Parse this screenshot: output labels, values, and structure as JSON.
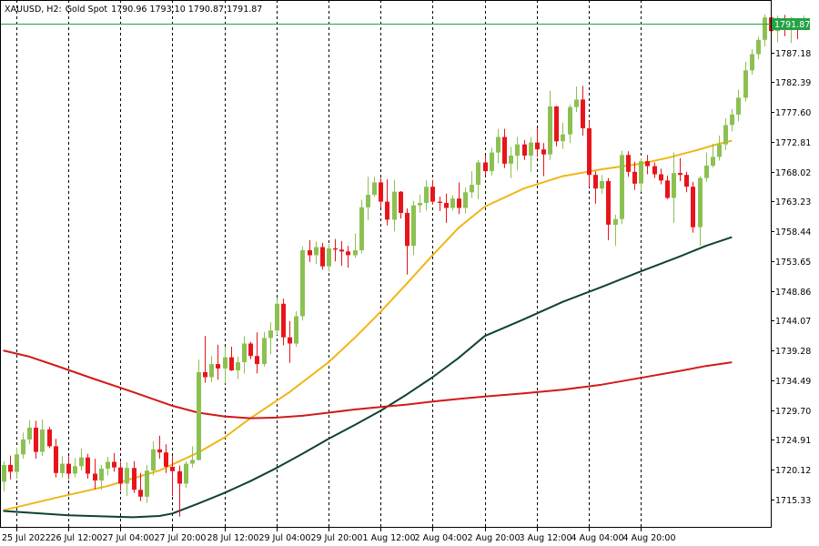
{
  "header": {
    "symbol": "XAUUSD, H2:",
    "name": "Gold Spot",
    "ohlc": "1790.96 1793.10 1790.87 1791.87"
  },
  "colors": {
    "bull": "#8cc152",
    "bear": "#e8141c",
    "ma_fast": "#f0b616",
    "ma_mid": "#0e4234",
    "ma_slow": "#d11a1a",
    "last_price_line": "#25a244",
    "grid": "#000000"
  },
  "chart_data": {
    "type": "candlestick",
    "title": "",
    "grid": "vertical dashed at time labels",
    "y_axis_position": "right",
    "ylim": [
      1710.8,
      1795.6
    ],
    "last_price": 1791.87,
    "last_price_label": "1791.87",
    "y_ticks": [
      "1787.18",
      "1782.39",
      "1777.60",
      "1772.81",
      "1768.02",
      "1763.23",
      "1758.44",
      "1753.65",
      "1748.86",
      "1744.07",
      "1739.28",
      "1734.49",
      "1729.70",
      "1724.91",
      "1720.12",
      "1715.33"
    ],
    "x_ticks": [
      "25 Jul 2022",
      "26 Jul 12:00",
      "27 Jul 04:00",
      "27 Jul 20:00",
      "28 Jul 12:00",
      "29 Jul 04:00",
      "29 Jul 20:00",
      "1 Aug 12:00",
      "2 Aug 04:00",
      "2 Aug 20:00",
      "3 Aug 12:00",
      "4 Aug 04:00",
      "4 Aug 20:00"
    ],
    "x_tick_bars": [
      2,
      10,
      18,
      26,
      34,
      42,
      50,
      58,
      66,
      74,
      82,
      90,
      98
    ],
    "candles": [
      [
        1718.2,
        1721.5,
        1716.6,
        1720.9
      ],
      [
        1720.9,
        1722.4,
        1718.6,
        1719.8
      ],
      [
        1719.8,
        1723.7,
        1718.7,
        1722.6
      ],
      [
        1722.6,
        1726.1,
        1721.9,
        1725.0
      ],
      [
        1725.0,
        1728.1,
        1724.2,
        1726.9
      ],
      [
        1726.9,
        1728.0,
        1721.9,
        1723.0
      ],
      [
        1723.0,
        1728.2,
        1722.3,
        1726.6
      ],
      [
        1726.6,
        1727.0,
        1723.6,
        1723.9
      ],
      [
        1723.9,
        1725.1,
        1718.9,
        1719.6
      ],
      [
        1719.6,
        1722.3,
        1718.9,
        1721.1
      ],
      [
        1721.1,
        1722.3,
        1718.6,
        1719.5
      ],
      [
        1719.5,
        1722.0,
        1718.9,
        1720.7
      ],
      [
        1720.7,
        1723.6,
        1720.0,
        1722.1
      ],
      [
        1722.1,
        1722.7,
        1718.7,
        1719.5
      ],
      [
        1719.5,
        1721.9,
        1717.0,
        1718.4
      ],
      [
        1718.4,
        1720.9,
        1716.9,
        1720.3
      ],
      [
        1720.3,
        1722.2,
        1719.2,
        1721.4
      ],
      [
        1721.4,
        1722.8,
        1719.8,
        1720.5
      ],
      [
        1720.5,
        1721.4,
        1716.8,
        1717.9
      ],
      [
        1717.9,
        1721.3,
        1715.9,
        1720.4
      ],
      [
        1720.4,
        1721.5,
        1716.4,
        1716.9
      ],
      [
        1716.9,
        1719.6,
        1715.1,
        1715.8
      ],
      [
        1715.8,
        1720.9,
        1714.8,
        1720.0
      ],
      [
        1720.0,
        1724.7,
        1719.2,
        1723.4
      ],
      [
        1723.4,
        1725.6,
        1721.9,
        1722.9
      ],
      [
        1722.9,
        1724.2,
        1719.6,
        1720.6
      ],
      [
        1720.6,
        1722.3,
        1715.9,
        1719.9
      ],
      [
        1719.9,
        1720.8,
        1712.6,
        1717.9
      ],
      [
        1717.9,
        1721.5,
        1717.2,
        1721.1
      ],
      [
        1721.1,
        1723.9,
        1720.5,
        1721.7
      ],
      [
        1721.7,
        1737.8,
        1721.6,
        1735.8
      ],
      [
        1735.8,
        1741.6,
        1734.1,
        1735.0
      ],
      [
        1735.0,
        1738.4,
        1734.2,
        1737.1
      ],
      [
        1737.1,
        1740.2,
        1734.6,
        1736.4
      ],
      [
        1736.4,
        1739.9,
        1734.0,
        1738.2
      ],
      [
        1738.2,
        1739.9,
        1736.0,
        1736.1
      ],
      [
        1736.1,
        1738.3,
        1734.7,
        1737.4
      ],
      [
        1737.4,
        1741.6,
        1735.6,
        1740.4
      ],
      [
        1740.4,
        1740.7,
        1737.9,
        1738.4
      ],
      [
        1738.4,
        1742.2,
        1735.6,
        1737.1
      ],
      [
        1737.1,
        1742.3,
        1736.7,
        1741.3
      ],
      [
        1741.3,
        1743.8,
        1738.7,
        1742.5
      ],
      [
        1742.5,
        1747.8,
        1741.8,
        1746.8
      ],
      [
        1746.8,
        1747.6,
        1740.1,
        1741.4
      ],
      [
        1741.4,
        1744.0,
        1737.3,
        1740.4
      ],
      [
        1740.4,
        1745.6,
        1739.9,
        1744.8
      ],
      [
        1744.8,
        1756.0,
        1744.1,
        1755.4
      ],
      [
        1755.4,
        1757.0,
        1753.5,
        1754.6
      ],
      [
        1754.6,
        1756.8,
        1753.2,
        1755.9
      ],
      [
        1755.9,
        1756.6,
        1752.3,
        1752.8
      ],
      [
        1752.8,
        1756.4,
        1752.0,
        1755.7
      ],
      [
        1755.7,
        1757.2,
        1753.6,
        1755.5
      ],
      [
        1755.5,
        1756.9,
        1752.9,
        1755.2
      ],
      [
        1755.2,
        1756.1,
        1752.6,
        1754.6
      ],
      [
        1754.6,
        1758.1,
        1754.2,
        1755.4
      ],
      [
        1755.4,
        1763.5,
        1754.9,
        1762.3
      ],
      [
        1762.3,
        1767.2,
        1760.2,
        1764.3
      ],
      [
        1764.3,
        1767.2,
        1764.0,
        1766.3
      ],
      [
        1766.3,
        1767.0,
        1762.2,
        1763.2
      ],
      [
        1763.2,
        1766.8,
        1759.4,
        1760.3
      ],
      [
        1760.3,
        1766.7,
        1758.4,
        1764.8
      ],
      [
        1764.8,
        1764.9,
        1760.5,
        1761.4
      ],
      [
        1761.4,
        1762.1,
        1751.5,
        1756.1
      ],
      [
        1756.1,
        1763.3,
        1754.6,
        1762.6
      ],
      [
        1762.6,
        1764.3,
        1761.4,
        1763.0
      ],
      [
        1763.0,
        1766.6,
        1761.8,
        1765.6
      ],
      [
        1765.6,
        1766.7,
        1762.7,
        1763.2
      ],
      [
        1763.2,
        1764.0,
        1761.7,
        1763.0
      ],
      [
        1763.0,
        1764.5,
        1759.8,
        1762.2
      ],
      [
        1762.2,
        1764.2,
        1761.8,
        1763.7
      ],
      [
        1763.7,
        1766.3,
        1761.2,
        1762.2
      ],
      [
        1762.2,
        1765.5,
        1761.3,
        1764.7
      ],
      [
        1764.7,
        1768.1,
        1763.8,
        1765.9
      ],
      [
        1765.9,
        1769.9,
        1763.6,
        1769.5
      ],
      [
        1769.5,
        1770.6,
        1767.5,
        1768.1
      ],
      [
        1768.1,
        1771.9,
        1767.4,
        1771.1
      ],
      [
        1771.1,
        1774.9,
        1769.4,
        1773.6
      ],
      [
        1773.6,
        1774.9,
        1768.6,
        1769.3
      ],
      [
        1769.3,
        1772.0,
        1767.0,
        1770.6
      ],
      [
        1770.6,
        1773.6,
        1768.2,
        1772.4
      ],
      [
        1772.4,
        1773.1,
        1769.9,
        1770.6
      ],
      [
        1770.6,
        1773.6,
        1768.0,
        1772.7
      ],
      [
        1772.7,
        1775.0,
        1770.4,
        1771.6
      ],
      [
        1771.6,
        1772.6,
        1767.3,
        1770.8
      ],
      [
        1770.8,
        1781.0,
        1769.9,
        1778.5
      ],
      [
        1778.5,
        1778.6,
        1772.1,
        1772.9
      ],
      [
        1772.9,
        1775.9,
        1771.7,
        1774.0
      ],
      [
        1774.0,
        1778.8,
        1772.6,
        1778.4
      ],
      [
        1778.4,
        1781.7,
        1777.6,
        1779.6
      ],
      [
        1779.6,
        1781.8,
        1773.8,
        1775.0
      ],
      [
        1775.0,
        1776.2,
        1765.6,
        1767.5
      ],
      [
        1767.5,
        1768.1,
        1762.9,
        1765.3
      ],
      [
        1765.3,
        1767.5,
        1764.5,
        1766.5
      ],
      [
        1766.5,
        1767.0,
        1757.0,
        1759.5
      ],
      [
        1759.5,
        1761.1,
        1756.1,
        1760.4
      ],
      [
        1760.4,
        1771.4,
        1759.6,
        1770.7
      ],
      [
        1770.7,
        1771.3,
        1767.2,
        1768.0
      ],
      [
        1768.0,
        1769.6,
        1765.1,
        1766.1
      ],
      [
        1766.1,
        1770.2,
        1764.8,
        1769.7
      ],
      [
        1769.7,
        1770.7,
        1767.6,
        1768.9
      ],
      [
        1768.9,
        1769.5,
        1767.0,
        1767.6
      ],
      [
        1767.6,
        1768.5,
        1766.0,
        1766.6
      ],
      [
        1766.6,
        1767.4,
        1763.6,
        1763.8
      ],
      [
        1763.8,
        1771.1,
        1759.8,
        1767.8
      ],
      [
        1767.8,
        1770.2,
        1766.5,
        1767.5
      ],
      [
        1767.5,
        1768.0,
        1764.7,
        1765.6
      ],
      [
        1765.6,
        1766.4,
        1758.2,
        1759.1
      ],
      [
        1759.1,
        1767.3,
        1756.1,
        1767.0
      ],
      [
        1767.0,
        1771.1,
        1766.4,
        1769.0
      ],
      [
        1769.0,
        1772.5,
        1768.7,
        1770.4
      ],
      [
        1770.4,
        1773.8,
        1769.8,
        1772.4
      ],
      [
        1772.4,
        1776.6,
        1771.5,
        1775.5
      ],
      [
        1775.5,
        1778.1,
        1774.5,
        1777.2
      ],
      [
        1777.2,
        1781.2,
        1776.1,
        1779.9
      ],
      [
        1779.9,
        1785.7,
        1779.3,
        1784.3
      ],
      [
        1784.3,
        1787.7,
        1783.6,
        1786.9
      ],
      [
        1786.9,
        1789.7,
        1786.1,
        1789.2
      ],
      [
        1789.2,
        1793.3,
        1788.1,
        1792.8
      ],
      [
        1792.8,
        1793.0,
        1789.4,
        1790.6
      ],
      [
        1790.6,
        1793.1,
        1788.8,
        1792.4
      ],
      [
        1792.4,
        1793.2,
        1789.8,
        1791.0
      ],
      [
        1791.0,
        1792.9,
        1788.7,
        1791.7
      ],
      [
        1791.7,
        1792.1,
        1789.3,
        1790.96
      ],
      [
        1790.96,
        1793.1,
        1790.87,
        1791.87
      ]
    ],
    "series": [
      {
        "kind": "ma_fast",
        "points": [
          [
            0,
            1713.6
          ],
          [
            8,
            1715.6
          ],
          [
            16,
            1717.5
          ],
          [
            24,
            1720.0
          ],
          [
            30,
            1722.9
          ],
          [
            34,
            1725.3
          ],
          [
            38,
            1728.4
          ],
          [
            44,
            1732.6
          ],
          [
            50,
            1737.4
          ],
          [
            54,
            1741.3
          ],
          [
            58,
            1745.5
          ],
          [
            62,
            1750.0
          ],
          [
            66,
            1754.6
          ],
          [
            70,
            1759.0
          ],
          [
            74,
            1762.4
          ],
          [
            80,
            1765.3
          ],
          [
            86,
            1767.3
          ],
          [
            92,
            1768.4
          ],
          [
            98,
            1769.3
          ],
          [
            102,
            1770.2
          ],
          [
            106,
            1771.3
          ],
          [
            110,
            1772.5
          ],
          [
            112,
            1773.0
          ]
        ]
      },
      {
        "kind": "ma_mid",
        "points": [
          [
            0,
            1713.5
          ],
          [
            10,
            1712.8
          ],
          [
            20,
            1712.5
          ],
          [
            24,
            1712.7
          ],
          [
            26,
            1713.1
          ],
          [
            30,
            1714.7
          ],
          [
            34,
            1716.4
          ],
          [
            38,
            1718.3
          ],
          [
            42,
            1720.4
          ],
          [
            46,
            1722.7
          ],
          [
            50,
            1725.1
          ],
          [
            54,
            1727.3
          ],
          [
            58,
            1729.6
          ],
          [
            62,
            1732.2
          ],
          [
            66,
            1735.0
          ],
          [
            70,
            1738.1
          ],
          [
            74,
            1741.6
          ],
          [
            80,
            1744.3
          ],
          [
            86,
            1747.1
          ],
          [
            92,
            1749.5
          ],
          [
            98,
            1752.0
          ],
          [
            104,
            1754.4
          ],
          [
            108,
            1756.1
          ],
          [
            112,
            1757.5
          ]
        ]
      },
      {
        "kind": "ma_slow",
        "points": [
          [
            0,
            1739.3
          ],
          [
            4,
            1738.3
          ],
          [
            8,
            1736.9
          ],
          [
            14,
            1734.7
          ],
          [
            20,
            1732.6
          ],
          [
            26,
            1730.4
          ],
          [
            30,
            1729.3
          ],
          [
            34,
            1728.7
          ],
          [
            38,
            1728.4
          ],
          [
            42,
            1728.5
          ],
          [
            46,
            1728.8
          ],
          [
            50,
            1729.3
          ],
          [
            54,
            1729.8
          ],
          [
            58,
            1730.2
          ],
          [
            62,
            1730.6
          ],
          [
            66,
            1731.1
          ],
          [
            70,
            1731.5
          ],
          [
            74,
            1731.9
          ],
          [
            80,
            1732.4
          ],
          [
            86,
            1733.0
          ],
          [
            92,
            1733.8
          ],
          [
            98,
            1734.9
          ],
          [
            104,
            1736.0
          ],
          [
            108,
            1736.8
          ],
          [
            112,
            1737.4
          ]
        ]
      }
    ]
  }
}
